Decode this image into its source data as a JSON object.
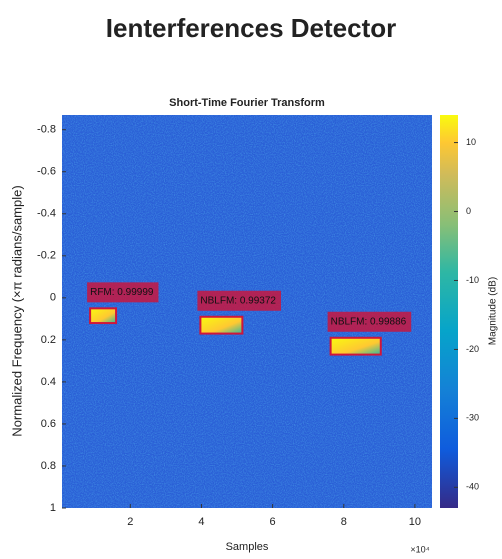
{
  "header": {
    "title": "Ienterferences Detector"
  },
  "chart_data": {
    "type": "spectrogram",
    "title": "Short-Time Fourier Transform",
    "x_label": "Samples",
    "x_multiplier": "×10⁴",
    "y_label": "Normalized Frequency (×π radians/sample)",
    "xlim": [
      0.08,
      10.48
    ],
    "xticks": [
      2,
      4,
      6,
      8,
      10
    ],
    "ylim": [
      -0.87,
      1
    ],
    "y_reversed": true,
    "yticks": [
      -0.8,
      -0.6,
      -0.4,
      -0.2,
      0,
      0.2,
      0.4,
      0.6,
      0.8,
      1
    ],
    "colorbar": {
      "label": "Magnitude (dB)",
      "lim": [
        -43,
        14
      ],
      "ticks": [
        10,
        0,
        -10,
        -20,
        -30,
        -40
      ]
    },
    "detections": [
      {
        "label": "RFM: 0.99999",
        "x": [
          0.87,
          1.6
        ],
        "y": [
          0.05,
          0.12
        ]
      },
      {
        "label": "NBLFM: 0.99372",
        "x": [
          3.97,
          5.15
        ],
        "y": [
          0.09,
          0.17
        ]
      },
      {
        "label": "NBLFM: 0.99886",
        "x": [
          7.63,
          9.04
        ],
        "y": [
          0.19,
          0.27
        ]
      }
    ]
  }
}
